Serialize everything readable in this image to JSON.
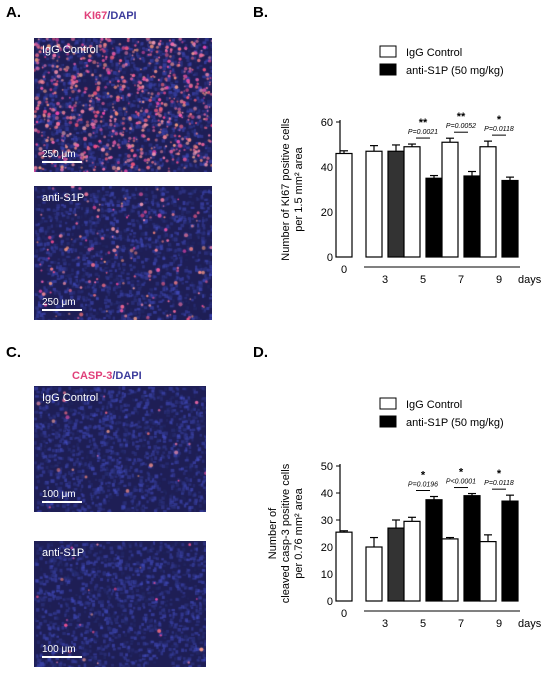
{
  "panelA": {
    "letter": "A.",
    "stain": {
      "marker": "KI67",
      "sep": "/",
      "counter": "DAPI"
    },
    "images": [
      {
        "label": "IgG Control",
        "scale": "250 μm",
        "density": "high"
      },
      {
        "label": "anti-S1P",
        "scale": "250 μm",
        "density": "low"
      }
    ]
  },
  "panelC": {
    "letter": "C.",
    "stain": {
      "marker": "CASP-3",
      "sep": "/",
      "counter": "DAPI"
    },
    "images": [
      {
        "label": "IgG Control",
        "scale": "100 μm",
        "density": "sparse"
      },
      {
        "label": "anti-S1P",
        "scale": "100 μm",
        "density": "sparse"
      }
    ]
  },
  "colors": {
    "marker_red": "#e0407a",
    "dapi_blue": "#3c3c9c",
    "control_bar": "#ffffff",
    "treated_bar": "#000000",
    "day3_treated_bar": "#333333"
  },
  "chart_data": [
    {
      "panel": "B.",
      "type": "bar",
      "ylabel_line1": "Number of KI67 positive  cells",
      "ylabel_line2": "per 1.5 mm² area",
      "ylim": [
        0,
        60
      ],
      "yticks": [
        "0",
        "20",
        "40",
        "60"
      ],
      "groups": [
        "0",
        "3",
        "5",
        "7",
        "9"
      ],
      "xunit": "days",
      "legend": [
        {
          "name": "IgG Control",
          "color": "#ffffff"
        },
        {
          "name": "anti-S1P (50 mg/kg)",
          "color": "#000000"
        }
      ],
      "series": [
        {
          "name": "IgG Control",
          "values": [
            46,
            47,
            49,
            51,
            49
          ],
          "errors": [
            1.2,
            2.5,
            1.2,
            1.8,
            2.5
          ]
        },
        {
          "name": "anti-S1P (50 mg/kg)",
          "values": [
            null,
            47,
            35,
            36,
            34
          ],
          "errors": [
            null,
            2.8,
            1.2,
            2.0,
            1.5
          ]
        }
      ],
      "annotations": [
        {
          "group": "5",
          "stars": "**",
          "p": "P=0.0021"
        },
        {
          "group": "7",
          "stars": "**",
          "p": "P=0.0052"
        },
        {
          "group": "9",
          "stars": "*",
          "p": "P=0.0118"
        }
      ]
    },
    {
      "panel": "D.",
      "type": "bar",
      "ylabel_line1": "Number of",
      "ylabel_line2": "cleaved casp-3 positive cells",
      "ylabel_line3": "per 0.76 mm² area",
      "ylim": [
        0,
        50
      ],
      "yticks": [
        "0",
        "10",
        "20",
        "30",
        "40",
        "50"
      ],
      "groups": [
        "0",
        "3",
        "5",
        "7",
        "9"
      ],
      "xunit": "days",
      "legend": [
        {
          "name": "IgG Control",
          "color": "#ffffff"
        },
        {
          "name": "anti-S1P (50 mg/kg)",
          "color": "#000000"
        }
      ],
      "series": [
        {
          "name": "IgG Control",
          "values": [
            25.5,
            20,
            29.5,
            23,
            22
          ],
          "errors": [
            0.5,
            3.5,
            1.5,
            0.5,
            2.5
          ]
        },
        {
          "name": "anti-S1P (50 mg/kg)",
          "values": [
            null,
            27,
            37.5,
            39,
            37
          ],
          "errors": [
            null,
            3,
            1.2,
            0.8,
            2.2
          ]
        }
      ],
      "annotations": [
        {
          "group": "5",
          "stars": "*",
          "p": "P=0.0196"
        },
        {
          "group": "7",
          "stars": "*",
          "p": "P<0.0001"
        },
        {
          "group": "9",
          "stars": "*",
          "p": "P=0.0118"
        }
      ]
    }
  ]
}
